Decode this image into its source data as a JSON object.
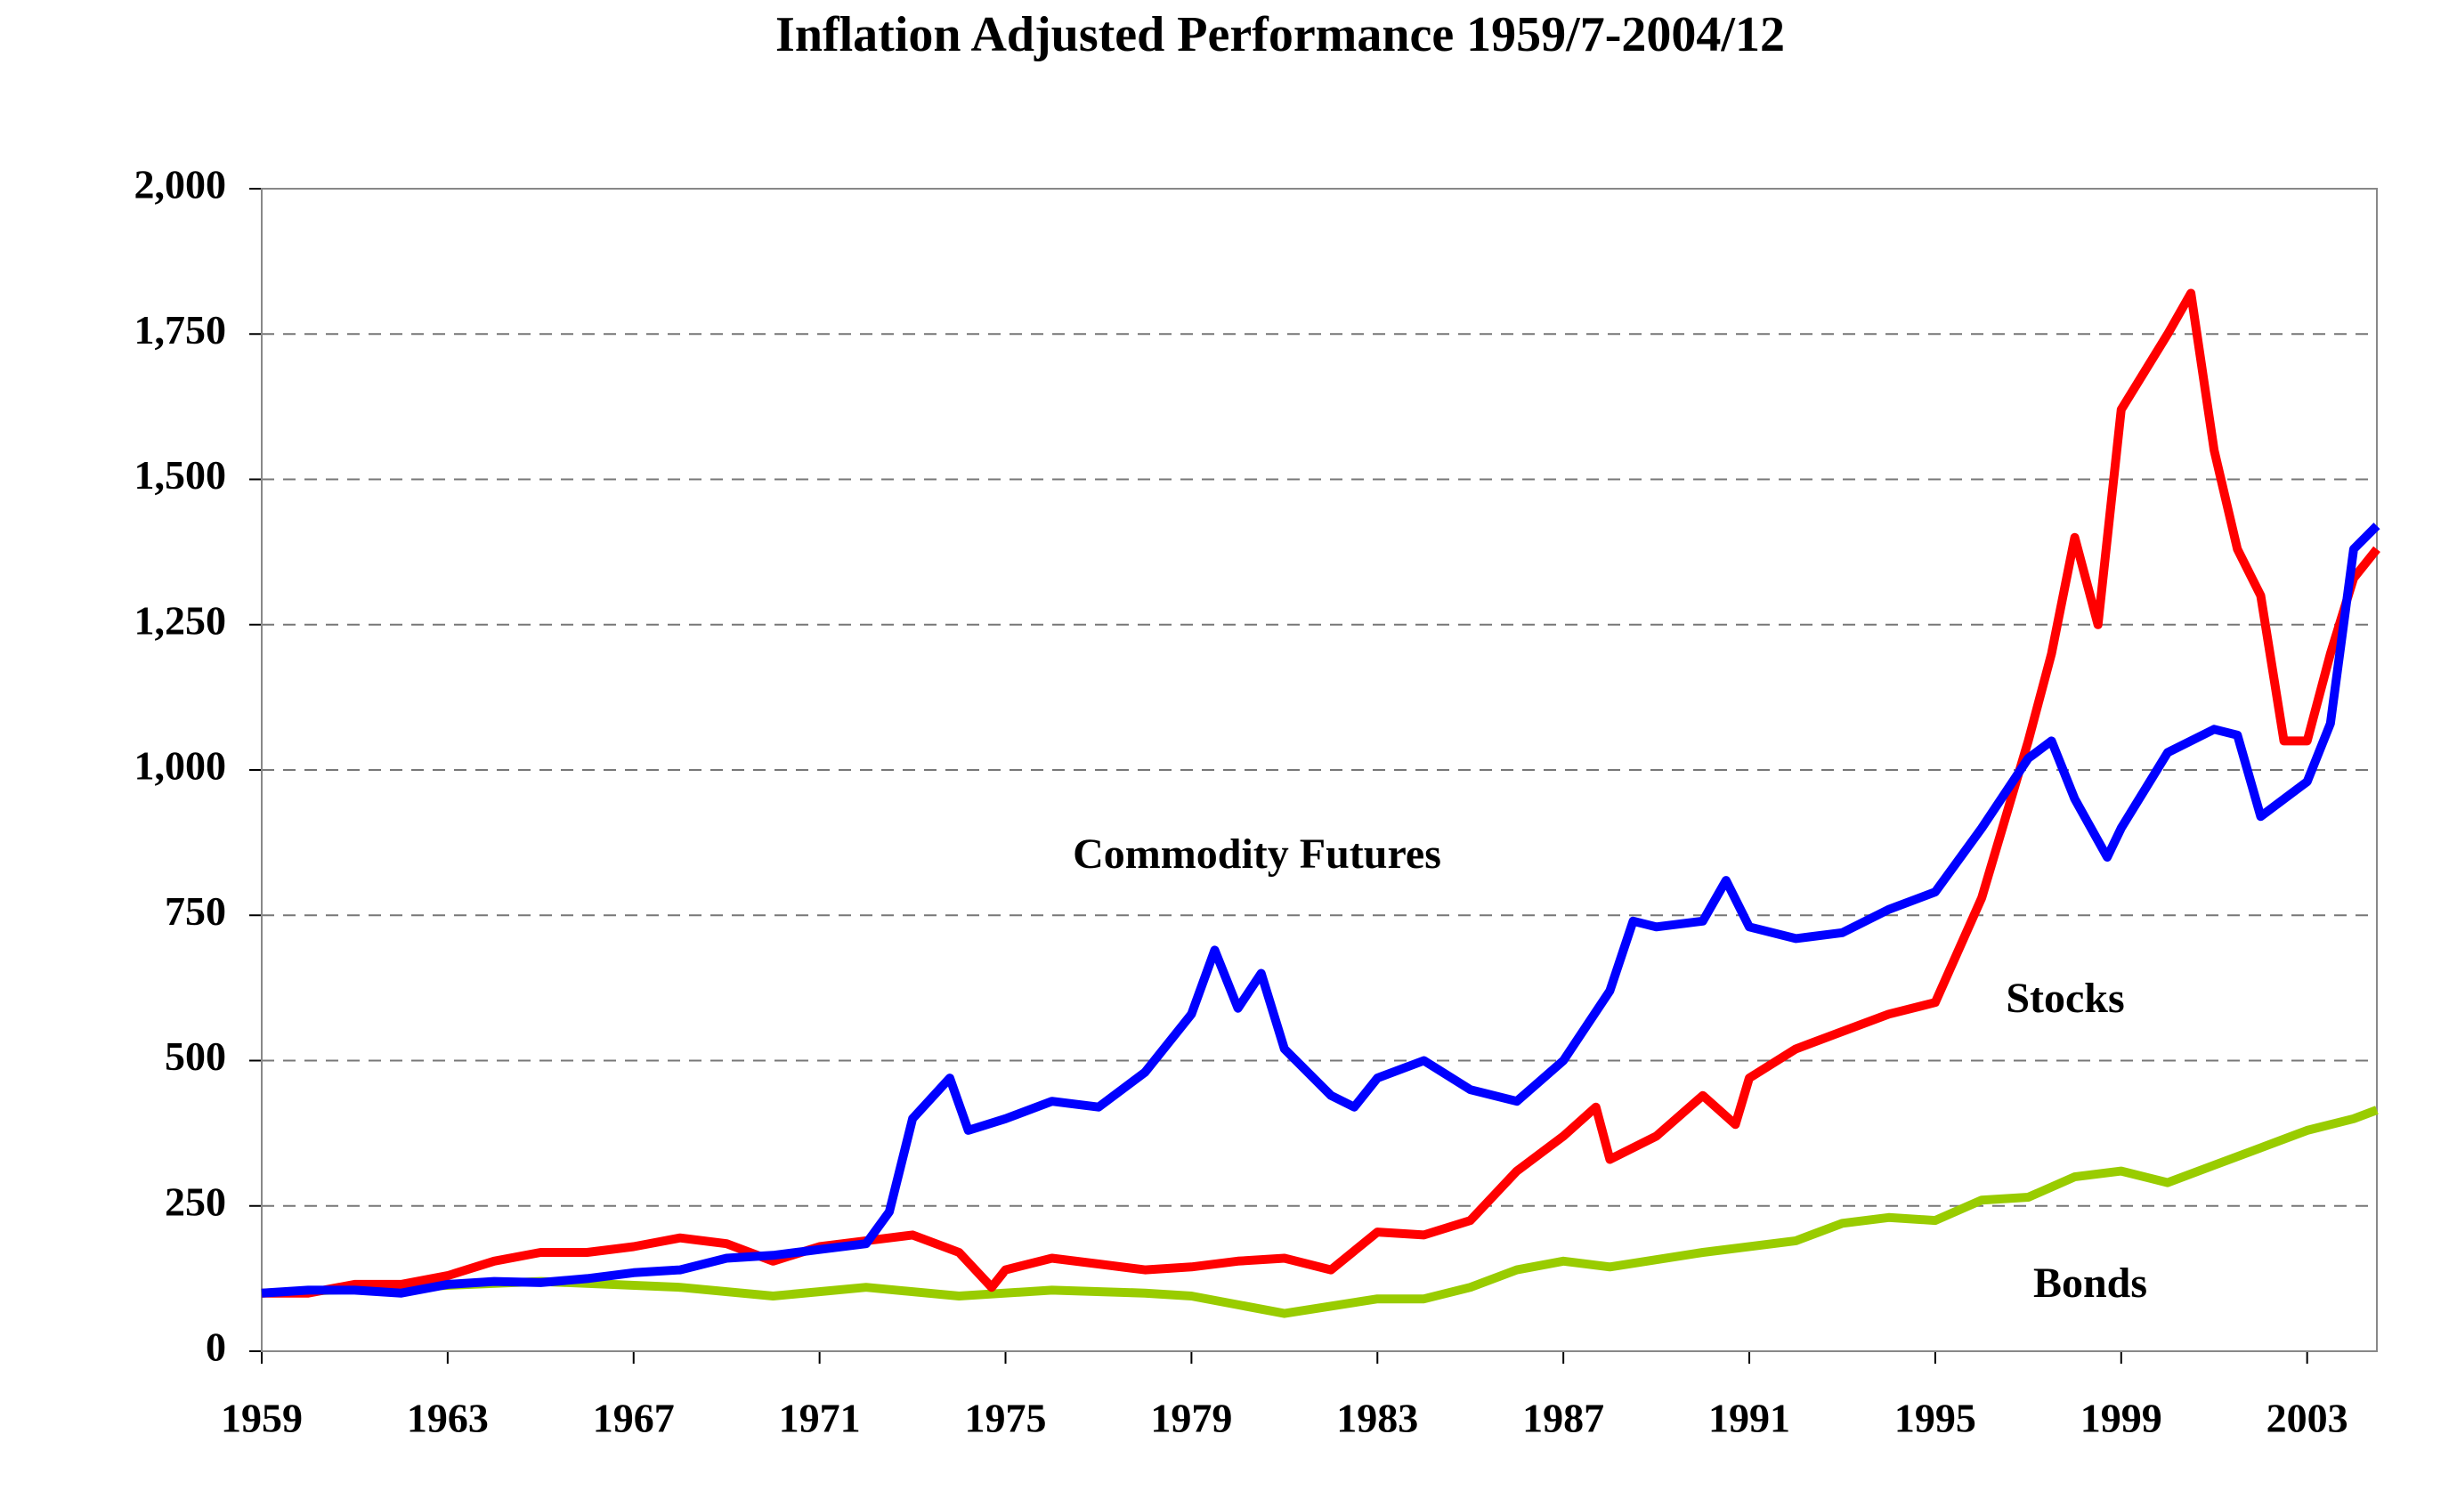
{
  "chart_data": {
    "type": "line",
    "title": "Inflation Adjusted Performance 1959/7-2004/12",
    "annotations": [
      "Commodity Futures",
      "Stocks",
      "Bonds"
    ],
    "xlim": [
      1959,
      2004.5
    ],
    "xticks": [
      1959,
      1963,
      1967,
      1971,
      1975,
      1979,
      1983,
      1987,
      1991,
      1995,
      1999,
      2003
    ],
    "ylim": [
      0,
      2000
    ],
    "yticks": [
      0,
      250,
      500,
      750,
      {
        "value": 1000,
        "label": "1,000"
      },
      {
        "value": 1250,
        "label": "1,250"
      },
      {
        "value": 1500,
        "label": "1,500"
      },
      {
        "value": 1750,
        "label": "1,750"
      },
      {
        "value": 2000,
        "label": "2,000"
      }
    ],
    "grid": true,
    "series": [
      {
        "color": "#0000ff",
        "x": [
          1959,
          1960,
          1961,
          1962,
          1963,
          1964,
          1965,
          1966,
          1967,
          1968,
          1969,
          1970,
          1971,
          1972,
          1972.5,
          1973,
          1973.8,
          1974.2,
          1975,
          1976,
          1977,
          1978,
          1979,
          1979.5,
          1980,
          1980.5,
          1981,
          1982,
          1982.5,
          1983,
          1984,
          1985,
          1986,
          1987,
          1988,
          1988.5,
          1989,
          1990,
          1990.5,
          1991,
          1992,
          1993,
          1994,
          1995,
          1996,
          1997,
          1997.5,
          1998,
          1998.7,
          1999,
          2000,
          2001,
          2001.5,
          2002,
          2003,
          2003.5,
          2004,
          2004.5
        ],
        "values": [
          100,
          105,
          105,
          100,
          115,
          120,
          118,
          125,
          135,
          140,
          160,
          165,
          175,
          185,
          240,
          400,
          470,
          380,
          400,
          430,
          420,
          480,
          580,
          690,
          590,
          650,
          520,
          440,
          420,
          470,
          500,
          450,
          430,
          500,
          620,
          740,
          730,
          740,
          810,
          730,
          710,
          720,
          760,
          790,
          900,
          1020,
          1050,
          950,
          850,
          900,
          1030,
          1070,
          1060,
          920,
          980,
          1080,
          1380,
          1420
        ]
      },
      {
        "color": "#ff0000",
        "x": [
          1959,
          1960,
          1961,
          1962,
          1963,
          1964,
          1965,
          1966,
          1967,
          1968,
          1969,
          1970,
          1971,
          1972,
          1973,
          1974,
          1974.7,
          1975,
          1976,
          1977,
          1978,
          1979,
          1980,
          1981,
          1982,
          1983,
          1984,
          1985,
          1986,
          1987,
          1987.7,
          1988,
          1989,
          1990,
          1990.7,
          1991,
          1992,
          1993,
          1994,
          1995,
          1996,
          1997,
          1997.5,
          1998,
          1998.5,
          1999,
          2000,
          2000.5,
          2001,
          2001.5,
          2002,
          2002.5,
          2003,
          2003.5,
          2004,
          2004.5
        ],
        "values": [
          100,
          100,
          115,
          115,
          130,
          155,
          170,
          170,
          180,
          195,
          185,
          155,
          180,
          190,
          200,
          170,
          110,
          140,
          160,
          150,
          140,
          145,
          155,
          160,
          140,
          205,
          200,
          225,
          310,
          370,
          420,
          330,
          370,
          440,
          390,
          470,
          520,
          550,
          580,
          600,
          780,
          1050,
          1200,
          1400,
          1250,
          1620,
          1750,
          1820,
          1550,
          1380,
          1300,
          1050,
          1050,
          1200,
          1330,
          1380
        ]
      },
      {
        "color": "#99cc00",
        "x": [
          1959,
          1962,
          1965,
          1968,
          1970,
          1972,
          1974,
          1976,
          1978,
          1979,
          1981,
          1983,
          1984,
          1985,
          1986,
          1987,
          1988,
          1990,
          1992,
          1993,
          1994,
          1995,
          1996,
          1997,
          1998,
          1999,
          2000,
          2001,
          2002,
          2003,
          2004,
          2004.5
        ],
        "values": [
          100,
          110,
          120,
          110,
          95,
          110,
          95,
          105,
          100,
          95,
          65,
          90,
          90,
          110,
          140,
          155,
          145,
          170,
          190,
          220,
          230,
          225,
          260,
          265,
          300,
          310,
          290,
          320,
          350,
          380,
          400,
          415
        ]
      }
    ]
  }
}
